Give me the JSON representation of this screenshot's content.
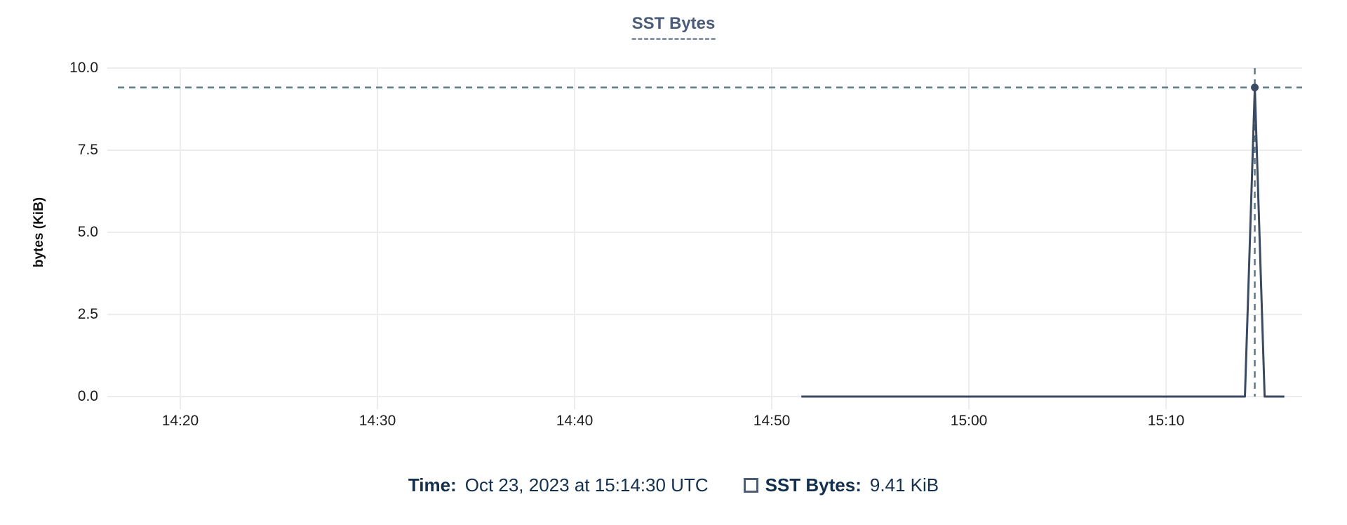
{
  "chart_data": {
    "type": "line",
    "title": "SST Bytes",
    "xlabel": "",
    "ylabel": "bytes (KiB)",
    "x_tick_labels": [
      "14:20",
      "14:30",
      "14:40",
      "14:50",
      "15:00",
      "15:10"
    ],
    "y_tick_labels": [
      "10.0",
      "7.5",
      "5.0",
      "2.5",
      "0.0"
    ],
    "ylim": [
      0,
      10
    ],
    "grid": true,
    "legend_position": "bottom",
    "series": [
      {
        "name": "SST Bytes",
        "color": "#3a4a63",
        "points": [
          {
            "t": "14:51:30",
            "v": 0
          },
          {
            "t": "15:14:00",
            "v": 0
          },
          {
            "t": "15:14:30",
            "v": 9.41
          },
          {
            "t": "15:15:00",
            "v": 0
          },
          {
            "t": "15:16:00",
            "v": 0
          }
        ]
      }
    ],
    "crosshair": {
      "t": "15:14:30",
      "v": 9.41
    }
  },
  "colors": {
    "series": "#3a4a63",
    "crosshair": "#5c7b8b",
    "grid": "#ececec",
    "title": "#4b5c78",
    "readout_text": "#13304f",
    "legend_swatch_border": "#4d5d75"
  },
  "readout": {
    "time_label": "Time:",
    "time_value": "Oct 23, 2023 at 15:14:30 UTC",
    "series_label": "SST Bytes:",
    "series_value": "9.41 KiB"
  }
}
